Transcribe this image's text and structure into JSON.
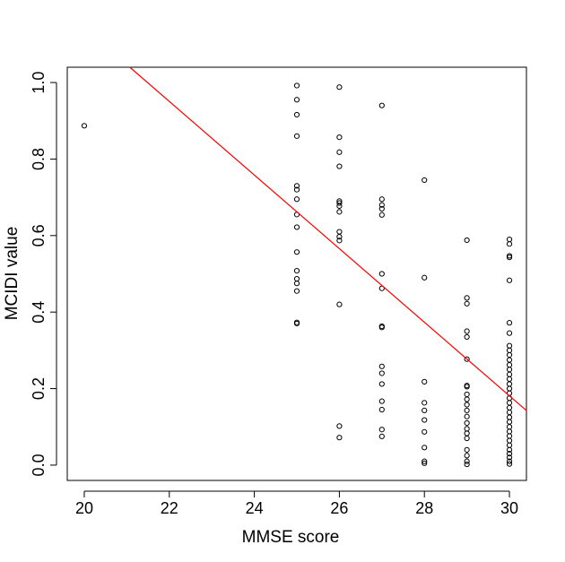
{
  "chart_data": {
    "type": "scatter",
    "xlabel": "MMSE score",
    "ylabel": "MCIDI value",
    "xlim": [
      19.6,
      30.4
    ],
    "ylim": [
      -0.04,
      1.04
    ],
    "x_ticks": [
      20,
      22,
      24,
      26,
      28,
      30
    ],
    "y_ticks": [
      0.0,
      0.2,
      0.4,
      0.6,
      0.8,
      1.0
    ],
    "x_tick_labels": [
      "20",
      "22",
      "24",
      "26",
      "28",
      "30"
    ],
    "y_tick_labels": [
      "0.0",
      "0.2",
      "0.4",
      "0.6",
      "0.8",
      "1.0"
    ],
    "grid": false,
    "fit_line": {
      "color": "#ff0000",
      "intercept": 3.067,
      "slope": -0.0962
    },
    "points": [
      [
        20,
        0.887
      ],
      [
        25,
        0.992
      ],
      [
        25,
        0.955
      ],
      [
        25,
        0.916
      ],
      [
        25,
        0.86
      ],
      [
        25,
        0.73
      ],
      [
        25,
        0.72
      ],
      [
        25,
        0.695
      ],
      [
        25,
        0.655
      ],
      [
        25,
        0.622
      ],
      [
        25,
        0.557
      ],
      [
        25,
        0.508
      ],
      [
        25,
        0.487
      ],
      [
        25,
        0.475
      ],
      [
        25,
        0.455
      ],
      [
        25,
        0.373
      ],
      [
        25,
        0.37
      ],
      [
        26,
        0.988
      ],
      [
        26,
        0.857
      ],
      [
        26,
        0.818
      ],
      [
        26,
        0.781
      ],
      [
        26,
        0.69
      ],
      [
        26,
        0.685
      ],
      [
        26,
        0.677
      ],
      [
        26,
        0.662
      ],
      [
        26,
        0.61
      ],
      [
        26,
        0.597
      ],
      [
        26,
        0.587
      ],
      [
        26,
        0.42
      ],
      [
        26,
        0.102
      ],
      [
        26,
        0.072
      ],
      [
        27,
        0.94
      ],
      [
        27,
        0.695
      ],
      [
        27,
        0.68
      ],
      [
        27,
        0.67
      ],
      [
        27,
        0.654
      ],
      [
        27,
        0.5
      ],
      [
        27,
        0.462
      ],
      [
        27,
        0.363
      ],
      [
        27,
        0.36
      ],
      [
        27,
        0.258
      ],
      [
        27,
        0.24
      ],
      [
        27,
        0.212
      ],
      [
        27,
        0.167
      ],
      [
        27,
        0.145
      ],
      [
        27,
        0.093
      ],
      [
        27,
        0.075
      ],
      [
        28,
        0.745
      ],
      [
        28,
        0.49
      ],
      [
        28,
        0.218
      ],
      [
        28,
        0.163
      ],
      [
        28,
        0.143
      ],
      [
        28,
        0.118
      ],
      [
        28,
        0.087
      ],
      [
        28,
        0.046
      ],
      [
        28,
        0.01
      ],
      [
        28,
        0.005
      ],
      [
        29,
        0.588
      ],
      [
        29,
        0.437
      ],
      [
        29,
        0.422
      ],
      [
        29,
        0.35
      ],
      [
        29,
        0.335
      ],
      [
        29,
        0.277
      ],
      [
        29,
        0.208
      ],
      [
        29,
        0.205
      ],
      [
        29,
        0.185
      ],
      [
        29,
        0.172
      ],
      [
        29,
        0.158
      ],
      [
        29,
        0.143
      ],
      [
        29,
        0.127
      ],
      [
        29,
        0.11
      ],
      [
        29,
        0.095
      ],
      [
        29,
        0.083
      ],
      [
        29,
        0.07
      ],
      [
        29,
        0.04
      ],
      [
        29,
        0.025
      ],
      [
        29,
        0.01
      ],
      [
        29,
        0.002
      ],
      [
        30,
        0.59
      ],
      [
        30,
        0.578
      ],
      [
        30,
        0.547
      ],
      [
        30,
        0.543
      ],
      [
        30,
        0.483
      ],
      [
        30,
        0.372
      ],
      [
        30,
        0.345
      ],
      [
        30,
        0.312
      ],
      [
        30,
        0.3
      ],
      [
        30,
        0.288
      ],
      [
        30,
        0.275
      ],
      [
        30,
        0.262
      ],
      [
        30,
        0.25
      ],
      [
        30,
        0.237
      ],
      [
        30,
        0.225
      ],
      [
        30,
        0.212
      ],
      [
        30,
        0.2
      ],
      [
        30,
        0.188
      ],
      [
        30,
        0.175
      ],
      [
        30,
        0.163
      ],
      [
        30,
        0.15
      ],
      [
        30,
        0.138
      ],
      [
        30,
        0.125
      ],
      [
        30,
        0.113
      ],
      [
        30,
        0.1
      ],
      [
        30,
        0.088
      ],
      [
        30,
        0.076
      ],
      [
        30,
        0.064
      ],
      [
        30,
        0.052
      ],
      [
        30,
        0.04
      ],
      [
        30,
        0.03
      ],
      [
        30,
        0.02
      ],
      [
        30,
        0.01
      ],
      [
        30,
        0.003
      ]
    ]
  }
}
